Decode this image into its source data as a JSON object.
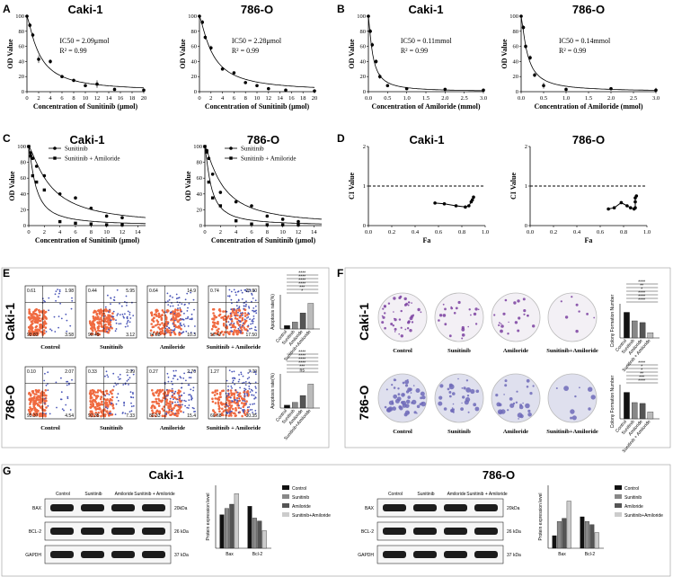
{
  "panel_labels": {
    "A": "A",
    "B": "B",
    "C": "C",
    "D": "D",
    "E": "E",
    "F": "F",
    "G": "G"
  },
  "titles": {
    "caki": "Caki-1",
    "o786": "786-O"
  },
  "chart_data": [
    {
      "id": "A1",
      "type": "scatter",
      "title": "Caki-1",
      "xlabel": "Concentration of Sunitinib (μmol)",
      "ylabel": "OD Value",
      "xlim": [
        0,
        20
      ],
      "ylim": [
        0,
        100
      ],
      "xticks": [
        0,
        2,
        4,
        6,
        8,
        10,
        12,
        14,
        16,
        18,
        20
      ],
      "yticks": [
        0,
        20,
        40,
        60,
        80,
        100
      ],
      "annotations": [
        "IC50 = 2.09μmol",
        "R² = 0.99"
      ],
      "x": [
        0,
        0.5,
        1,
        2,
        4,
        6,
        8,
        10,
        12,
        15,
        20
      ],
      "y": [
        100,
        88,
        75,
        43,
        40,
        20,
        15,
        8,
        10,
        3,
        2
      ],
      "err": [
        0,
        3,
        3,
        5,
        3,
        2,
        2,
        2,
        5,
        1,
        1
      ],
      "fit_ic50": 2.09
    },
    {
      "id": "A2",
      "type": "scatter",
      "title": "786-O",
      "xlabel": "Concentration of Sunitinib (μmol)",
      "ylabel": "OD Value",
      "xlim": [
        0,
        20
      ],
      "ylim": [
        0,
        100
      ],
      "xticks": [
        0,
        2,
        4,
        6,
        8,
        10,
        12,
        14,
        16,
        18,
        20
      ],
      "yticks": [
        0,
        20,
        40,
        60,
        80,
        100
      ],
      "annotations": [
        "IC50 = 2.28μmol",
        "R² = 0.99"
      ],
      "x": [
        0,
        0.5,
        1,
        2,
        4,
        6,
        8,
        10,
        12,
        15,
        20
      ],
      "y": [
        100,
        92,
        72,
        58,
        30,
        25,
        12,
        8,
        4,
        2,
        1
      ],
      "err": [
        0,
        3,
        3,
        3,
        2,
        2,
        1,
        1,
        1,
        1,
        1
      ],
      "fit_ic50": 2.28
    },
    {
      "id": "B1",
      "type": "scatter",
      "title": "Caki-1",
      "xlabel": "Concentration of Amiloride (mmol)",
      "ylabel": "OD Value",
      "xlim": [
        0,
        3
      ],
      "ylim": [
        0,
        100
      ],
      "xticks": [
        0,
        0.5,
        1.0,
        1.5,
        2.0,
        2.5,
        3.0
      ],
      "yticks": [
        0,
        20,
        40,
        60,
        80,
        100
      ],
      "annotations": [
        "IC50 = 0.11mmol",
        "R² = 0.99"
      ],
      "x": [
        0,
        0.05,
        0.1,
        0.2,
        0.3,
        0.5,
        1.0,
        2.0,
        3.0
      ],
      "y": [
        100,
        80,
        62,
        40,
        20,
        8,
        4,
        3,
        2
      ],
      "err": [
        0,
        3,
        3,
        3,
        3,
        2,
        1,
        1,
        1
      ],
      "fit_ic50": 0.11
    },
    {
      "id": "B2",
      "type": "scatter",
      "title": "786-O",
      "xlabel": "Concentration of Amiloride (mmol)",
      "ylabel": "OD Value",
      "xlim": [
        0,
        3
      ],
      "ylim": [
        0,
        100
      ],
      "xticks": [
        0,
        0.5,
        1.0,
        1.5,
        2.0,
        2.5,
        3.0
      ],
      "yticks": [
        0,
        20,
        40,
        60,
        80,
        100
      ],
      "annotations": [
        "IC50 = 0.14mmol",
        "R² = 0.99"
      ],
      "x": [
        0,
        0.05,
        0.1,
        0.2,
        0.3,
        0.5,
        1.0,
        2.0,
        3.0
      ],
      "y": [
        100,
        85,
        60,
        45,
        22,
        8,
        3,
        4,
        2
      ],
      "err": [
        0,
        3,
        3,
        3,
        3,
        4,
        1,
        1,
        3
      ],
      "fit_ic50": 0.14
    },
    {
      "id": "C1",
      "type": "scatter",
      "title": "Caki-1",
      "xlabel": "Concentration of Sunitinib (μmol)",
      "ylabel": "OD Value",
      "xlim": [
        0,
        15
      ],
      "ylim": [
        0,
        100
      ],
      "xticks": [
        0,
        2,
        4,
        6,
        8,
        10,
        12,
        14
      ],
      "yticks": [
        0,
        20,
        40,
        60,
        80,
        100
      ],
      "series": [
        {
          "name": "Sunitinib",
          "marker": "circle",
          "x": [
            0,
            0.25,
            0.5,
            1,
            2,
            4,
            6,
            8,
            10,
            12
          ],
          "y": [
            100,
            92,
            85,
            75,
            63,
            40,
            35,
            22,
            12,
            10
          ],
          "fit_ic50": 2.8
        },
        {
          "name": "Sunitinib + Amiloride",
          "marker": "square",
          "x": [
            0,
            0.25,
            0.5,
            1,
            2,
            4,
            6,
            8,
            10,
            12
          ],
          "y": [
            100,
            88,
            63,
            55,
            45,
            5,
            3,
            2,
            1,
            1
          ],
          "fit_ic50": 0.9
        }
      ]
    },
    {
      "id": "C2",
      "type": "scatter",
      "title": "786-O",
      "xlabel": "Concentration of Sunitinib (μmol)",
      "ylabel": "OD Value",
      "xlim": [
        0,
        15
      ],
      "ylim": [
        0,
        100
      ],
      "xticks": [
        0,
        2,
        4,
        6,
        8,
        10,
        12,
        14
      ],
      "yticks": [
        0,
        20,
        40,
        60,
        80,
        100
      ],
      "series": [
        {
          "name": "Sunitinib",
          "marker": "circle",
          "x": [
            0,
            0.25,
            0.5,
            1,
            2,
            4,
            6,
            8,
            10,
            12
          ],
          "y": [
            100,
            95,
            85,
            65,
            42,
            30,
            25,
            12,
            8,
            5
          ],
          "fit_ic50": 2.3
        },
        {
          "name": "Sunitinib + Amiloride",
          "marker": "square",
          "x": [
            0,
            0.25,
            0.5,
            1,
            2,
            4,
            6,
            8,
            10,
            12
          ],
          "y": [
            100,
            93,
            55,
            35,
            25,
            6,
            2,
            1,
            1,
            1
          ],
          "fit_ic50": 0.8
        }
      ]
    },
    {
      "id": "D1",
      "type": "line",
      "title": "Caki-1",
      "xlabel": "Fa",
      "ylabel": "CI Value",
      "xlim": [
        0,
        1.0
      ],
      "ylim": [
        0,
        2
      ],
      "xticks": [
        0.0,
        0.2,
        0.4,
        0.6,
        0.8,
        1.0
      ],
      "yticks": [
        0,
        1,
        2
      ],
      "reference_line": 1,
      "x": [
        0.57,
        0.65,
        0.75,
        0.83,
        0.86,
        0.88,
        0.89,
        0.9
      ],
      "y": [
        0.57,
        0.55,
        0.5,
        0.47,
        0.5,
        0.6,
        0.65,
        0.72
      ]
    },
    {
      "id": "D2",
      "type": "line",
      "title": "786-O",
      "xlabel": "Fa",
      "ylabel": "CI Value",
      "xlim": [
        0,
        1.0
      ],
      "ylim": [
        0,
        2
      ],
      "xticks": [
        0.0,
        0.2,
        0.4,
        0.6,
        0.8,
        1.0
      ],
      "yticks": [
        0,
        1,
        2
      ],
      "reference_line": 1,
      "x": [
        0.67,
        0.72,
        0.78,
        0.83,
        0.86,
        0.89,
        0.9,
        0.9,
        0.9,
        0.91
      ],
      "y": [
        0.42,
        0.45,
        0.58,
        0.5,
        0.45,
        0.42,
        0.45,
        0.6,
        0.7,
        0.75
      ]
    },
    {
      "id": "E1",
      "type": "bar",
      "ylabel": "Apoptosis rate(%)",
      "ylim": [
        0,
        60
      ],
      "yticks": [
        0,
        20,
        40,
        60
      ],
      "categories": [
        "Control",
        "Sunitinib",
        "Amiloride",
        "Sunitinib+Amiloride"
      ],
      "values": [
        6,
        12,
        28,
        45
      ],
      "colors": [
        "#111111",
        "#888888",
        "#555555",
        "#bbbbbb"
      ],
      "significance": [
        "*",
        "***",
        "****",
        "****",
        "****",
        "****"
      ]
    },
    {
      "id": "E2",
      "type": "bar",
      "ylabel": "Apoptosis rate(%)",
      "ylim": [
        0,
        60
      ],
      "yticks": [
        0,
        20,
        40,
        60
      ],
      "categories": [
        "Control",
        "Sunitinib",
        "Amiloride",
        "Sunitinib+Amiloride"
      ],
      "values": [
        5,
        10,
        22,
        42
      ],
      "colors": [
        "#111111",
        "#888888",
        "#555555",
        "#bbbbbb"
      ],
      "significance": [
        "ns",
        "***",
        "****",
        "****",
        "****",
        "****"
      ]
    },
    {
      "id": "F1",
      "type": "bar",
      "ylabel": "Colony Formation Number",
      "ylim": [
        0,
        200
      ],
      "categories": [
        "Control",
        "Sunitinib",
        "Amiloride",
        "Sunitinib + Amiloride"
      ],
      "values": [
        150,
        100,
        90,
        30
      ],
      "colors": [
        "#111111",
        "#888888",
        "#555555",
        "#bbbbbb"
      ],
      "significance": [
        "****",
        "****",
        "****",
        "*",
        "**",
        "****"
      ]
    },
    {
      "id": "F2",
      "type": "bar",
      "ylabel": "Colony Formation Number",
      "ylim": [
        0,
        200
      ],
      "categories": [
        "Control",
        "Sunitinib",
        "Amiloride",
        "Sunitinib + Amiloride"
      ],
      "values": [
        155,
        95,
        90,
        40
      ],
      "colors": [
        "#111111",
        "#888888",
        "#555555",
        "#bbbbbb"
      ],
      "significance": [
        "****",
        "***",
        "**",
        "*",
        "*",
        "****"
      ]
    },
    {
      "id": "G1",
      "type": "bar",
      "ylabel": "Protein expression level",
      "ylim": [
        0,
        1.5
      ],
      "categories": [
        "Bax",
        "Bcl-2"
      ],
      "series": [
        {
          "name": "Control",
          "values": [
            0.8,
            1.0
          ]
        },
        {
          "name": "Sunitinib",
          "values": [
            0.95,
            0.72
          ]
        },
        {
          "name": "Amiloride",
          "values": [
            1.05,
            0.65
          ]
        },
        {
          "name": "Sunitinib+Amiloride",
          "values": [
            1.3,
            0.42
          ]
        }
      ],
      "colors": [
        "#111111",
        "#888888",
        "#555555",
        "#cccccc"
      ]
    },
    {
      "id": "G2",
      "type": "bar",
      "ylabel": "Protein expression level",
      "ylim": [
        0,
        2
      ],
      "categories": [
        "Bax",
        "Bcl-2"
      ],
      "series": [
        {
          "name": "Control",
          "values": [
            0.4,
            1.0
          ]
        },
        {
          "name": "Sunitinib",
          "values": [
            0.85,
            0.85
          ]
        },
        {
          "name": "Amiloride",
          "values": [
            0.95,
            0.75
          ]
        },
        {
          "name": "Sunitinib+Amiloride",
          "values": [
            1.5,
            0.5
          ]
        }
      ],
      "colors": [
        "#111111",
        "#888888",
        "#555555",
        "#cccccc"
      ]
    }
  ],
  "flow": {
    "caki": [
      {
        "caption": "Control",
        "q": [
          "0.61",
          "1.98",
          "93.82",
          "3.58"
        ]
      },
      {
        "caption": "Sunitinib",
        "q": [
          "0.44",
          "5.95",
          "90.49",
          "3.12"
        ]
      },
      {
        "caption": "Amiloride",
        "q": [
          "0.64",
          "14.9",
          "74.08",
          "10.3"
        ]
      },
      {
        "caption": "Sunitinib + Amiloride",
        "q": [
          "0.74",
          "25.80",
          "56.47",
          "17.50"
        ]
      }
    ],
    "o786": [
      {
        "caption": "Control",
        "q": [
          "0.10",
          "2.07",
          "93.37",
          "4.54"
        ]
      },
      {
        "caption": "Sunitinib",
        "q": [
          "0.33",
          "2.99",
          "91.35",
          "7.33"
        ]
      },
      {
        "caption": "Amiloride",
        "q": [
          "0.27",
          "2.70",
          "80.33",
          "15.4"
        ]
      },
      {
        "caption": "Sunitinib + Amiloride",
        "q": [
          "1.27",
          "7.70",
          "60.68",
          "30.35"
        ]
      }
    ]
  },
  "colony": {
    "captions": [
      "Control",
      "Sunitinib",
      "Amiloride",
      "Sunitinib+Amiloride"
    ]
  },
  "western": {
    "caki": {
      "lanes": [
        "Control",
        "Sunitinib",
        "Amiloride",
        "Sunitinib + Amiloride"
      ],
      "proteins": [
        "BAX",
        "BCL-2",
        "GAPDH"
      ],
      "sizes": [
        "20kDa",
        "26 kDa",
        "37 kDa"
      ]
    },
    "o786": {
      "lanes": [
        "Control",
        "Sunitinib",
        "Amiloride",
        "Sunitinib + Amiloride"
      ],
      "proteins": [
        "BAX",
        "BCL-2",
        "GAPDH"
      ],
      "sizes": [
        "20kDa",
        "26 kDa",
        "37 kDa"
      ]
    }
  }
}
